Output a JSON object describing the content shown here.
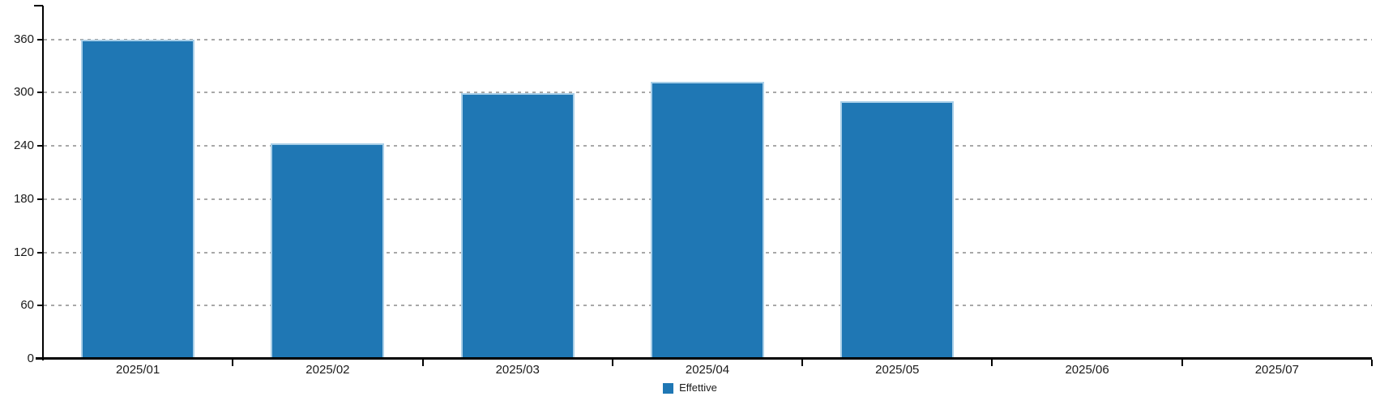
{
  "chart_data": {
    "type": "bar",
    "title": "",
    "xlabel": "",
    "ylabel": "",
    "categories": [
      "2025/01",
      "2025/02",
      "2025/03",
      "2025/04",
      "2025/05",
      "2025/06",
      "2025/07"
    ],
    "series": [
      {
        "name": "Effettive",
        "values": [
          360,
          243,
          299,
          312,
          290,
          null,
          null
        ]
      }
    ],
    "yticks": [
      0,
      60,
      120,
      180,
      240,
      300,
      360
    ],
    "ylim": [
      0,
      398
    ],
    "grid": "horizontal-dashed",
    "legend_position": "bottom-center",
    "colors": {
      "bar_fill": "#1f77b4",
      "bar_border": "#a9cfe8",
      "gridline": "#a8a8a8",
      "axis": "#000000",
      "text": "#1a1a1a"
    }
  },
  "legend": {
    "items": [
      {
        "label": "Effettive",
        "color": "#1f77b4"
      }
    ]
  }
}
